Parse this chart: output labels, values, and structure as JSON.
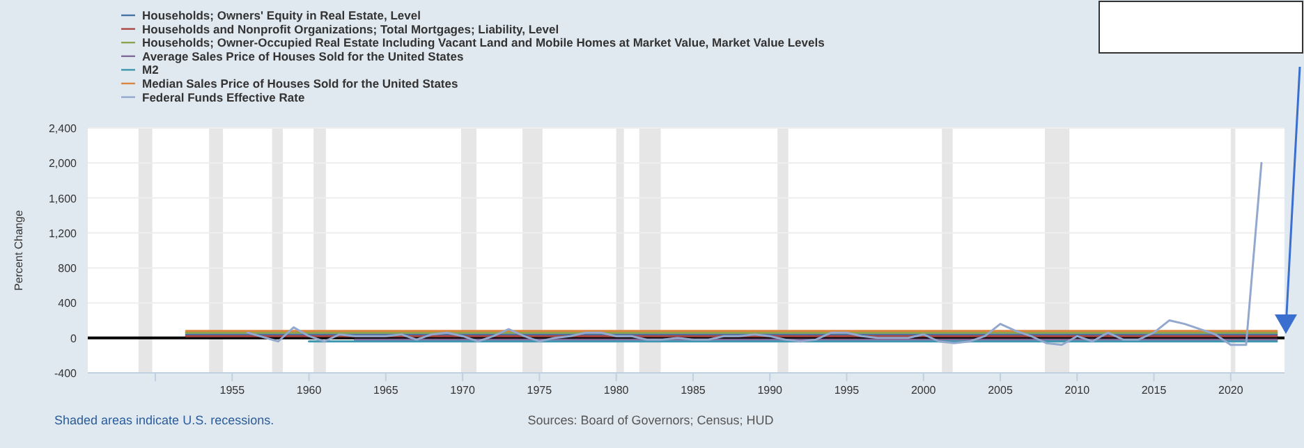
{
  "chart_data": {
    "type": "line",
    "ylabel": "Percent Change",
    "annotations": [
      "Shaded areas indicate U.S. recessions.",
      "Sources: Board of Governors; Census; HUD"
    ],
    "legend": "top left",
    "grid": "y",
    "marker": "none",
    "line_style": "solid",
    "xlim": [
      1945.6,
      2023.5
    ],
    "xticks": [
      {
        "value": 1950,
        "label": null
      },
      1955,
      1960,
      1965,
      1970,
      1975,
      1980,
      1985,
      1990,
      1995,
      2000,
      2005,
      2010,
      2015,
      2020
    ],
    "ylim": [
      -400,
      2400
    ],
    "yticks": [
      {
        "value": -400,
        "label": "-400"
      },
      {
        "value": 0,
        "label": "0"
      },
      {
        "value": 400,
        "label": "400"
      },
      {
        "value": 800,
        "label": "800"
      },
      {
        "value": 1200,
        "label": "1,200"
      },
      {
        "value": 1600,
        "label": "1,600"
      },
      {
        "value": 2000,
        "label": "2,000"
      },
      {
        "value": 2400,
        "label": "2,400"
      }
    ],
    "ref_lines": [
      {
        "axis": "y",
        "value": 0,
        "color": "#000000"
      }
    ],
    "bands": [
      {
        "axis": "x",
        "from": 1948.9,
        "to": 1949.8,
        "color": "#e6e6e6"
      },
      {
        "axis": "x",
        "from": 1953.5,
        "to": 1954.4,
        "color": "#e6e6e6"
      },
      {
        "axis": "x",
        "from": 1957.6,
        "to": 1958.3,
        "color": "#e6e6e6"
      },
      {
        "axis": "x",
        "from": 1960.3,
        "to": 1961.1,
        "color": "#e6e6e6"
      },
      {
        "axis": "x",
        "from": 1969.9,
        "to": 1970.9,
        "color": "#e6e6e6"
      },
      {
        "axis": "x",
        "from": 1973.9,
        "to": 1975.2,
        "color": "#e6e6e6"
      },
      {
        "axis": "x",
        "from": 1980.0,
        "to": 1980.5,
        "color": "#e6e6e6"
      },
      {
        "axis": "x",
        "from": 1981.5,
        "to": 1982.9,
        "color": "#e6e6e6"
      },
      {
        "axis": "x",
        "from": 1990.5,
        "to": 1991.2,
        "color": "#e6e6e6"
      },
      {
        "axis": "x",
        "from": 2001.2,
        "to": 2001.9,
        "color": "#e6e6e6"
      },
      {
        "axis": "x",
        "from": 2007.9,
        "to": 2009.5,
        "color": "#e6e6e6"
      },
      {
        "axis": "x",
        "from": 2020.0,
        "to": 2020.3,
        "color": "#e6e6e6"
      }
    ],
    "series": [
      {
        "name": "Households; Owners' Equity in Real Estate, Level",
        "color": "#4572a7",
        "x": [
          1952,
          2023
        ],
        "values": [
          40,
          40
        ]
      },
      {
        "name": "Households and Nonprofit Organizations; Total Mortgages; Liability, Level",
        "color": "#aa4643",
        "x": [
          1952,
          2023
        ],
        "values": [
          20,
          20
        ]
      },
      {
        "name": "Households; Owner-Occupied Real Estate Including Vacant Land and Mobile Homes at Market Value, Market Value Levels",
        "color": "#89a54e",
        "x": [
          1952,
          2023
        ],
        "values": [
          60,
          60
        ]
      },
      {
        "name": "Average Sales Price of Houses Sold for the United States",
        "color": "#80699b",
        "x": [
          1963,
          2023
        ],
        "values": [
          -20,
          -20
        ]
      },
      {
        "name": "M2",
        "color": "#3d96ae",
        "x": [
          1960,
          2023
        ],
        "values": [
          -40,
          -40
        ]
      },
      {
        "name": "Median Sales Price of Houses Sold for the United States",
        "color": "#db843d",
        "x": [
          1952,
          2023
        ],
        "values": [
          80,
          80
        ]
      },
      {
        "name": "Federal Funds Effective Rate",
        "color": "#92a8cd",
        "x": [
          1956,
          1958,
          1959,
          1960,
          1961,
          1962,
          1963,
          1964,
          1965,
          1966,
          1967,
          1968,
          1969,
          1970,
          1971,
          1972,
          1973,
          1974,
          1975,
          1976,
          1977,
          1978,
          1979,
          1980,
          1981,
          1982,
          1983,
          1984,
          1985,
          1986,
          1987,
          1988,
          1989,
          1990,
          1991,
          1992,
          1993,
          1994,
          1995,
          1996,
          1997,
          1998,
          1999,
          2000,
          2001,
          2002,
          2003,
          2004,
          2005,
          2006,
          2007,
          2008,
          2009,
          2010,
          2011,
          2012,
          2013,
          2014,
          2015,
          2016,
          2017,
          2018,
          2019,
          2020,
          2021,
          2022
        ],
        "values": [
          60,
          -40,
          120,
          20,
          -40,
          40,
          20,
          20,
          20,
          40,
          -20,
          40,
          60,
          20,
          -40,
          20,
          100,
          20,
          -40,
          0,
          20,
          60,
          60,
          20,
          20,
          -20,
          -20,
          0,
          -20,
          -20,
          20,
          20,
          40,
          20,
          -20,
          -40,
          -20,
          60,
          60,
          20,
          0,
          0,
          0,
          40,
          -40,
          -60,
          -40,
          20,
          160,
          80,
          20,
          -60,
          -80,
          20,
          -40,
          60,
          -20,
          -20,
          60,
          200,
          160,
          100,
          40,
          -80,
          -80,
          2000
        ]
      }
    ]
  }
}
